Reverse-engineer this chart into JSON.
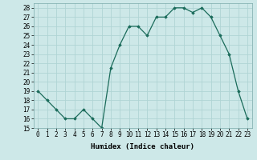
{
  "x": [
    0,
    1,
    2,
    3,
    4,
    5,
    6,
    7,
    8,
    9,
    10,
    11,
    12,
    13,
    14,
    15,
    16,
    17,
    18,
    19,
    20,
    21,
    22,
    23
  ],
  "y": [
    19,
    18,
    17,
    16,
    16,
    17,
    16,
    15,
    21.5,
    24,
    26,
    26,
    25,
    27,
    27,
    28,
    28,
    27.5,
    28,
    27,
    25,
    23,
    19,
    16
  ],
  "xlabel": "Humidex (Indice chaleur)",
  "xlim": [
    -0.5,
    23.5
  ],
  "ylim": [
    15,
    28.5
  ],
  "yticks": [
    15,
    16,
    17,
    18,
    19,
    20,
    21,
    22,
    23,
    24,
    25,
    26,
    27,
    28
  ],
  "xticks": [
    0,
    1,
    2,
    3,
    4,
    5,
    6,
    7,
    8,
    9,
    10,
    11,
    12,
    13,
    14,
    15,
    16,
    17,
    18,
    19,
    20,
    21,
    22,
    23
  ],
  "line_color": "#1a6b5a",
  "marker": "D",
  "marker_size": 1.8,
  "bg_color": "#cde8e8",
  "grid_color": "#b0d4d4",
  "axis_fontsize": 6.5,
  "tick_fontsize": 5.5
}
